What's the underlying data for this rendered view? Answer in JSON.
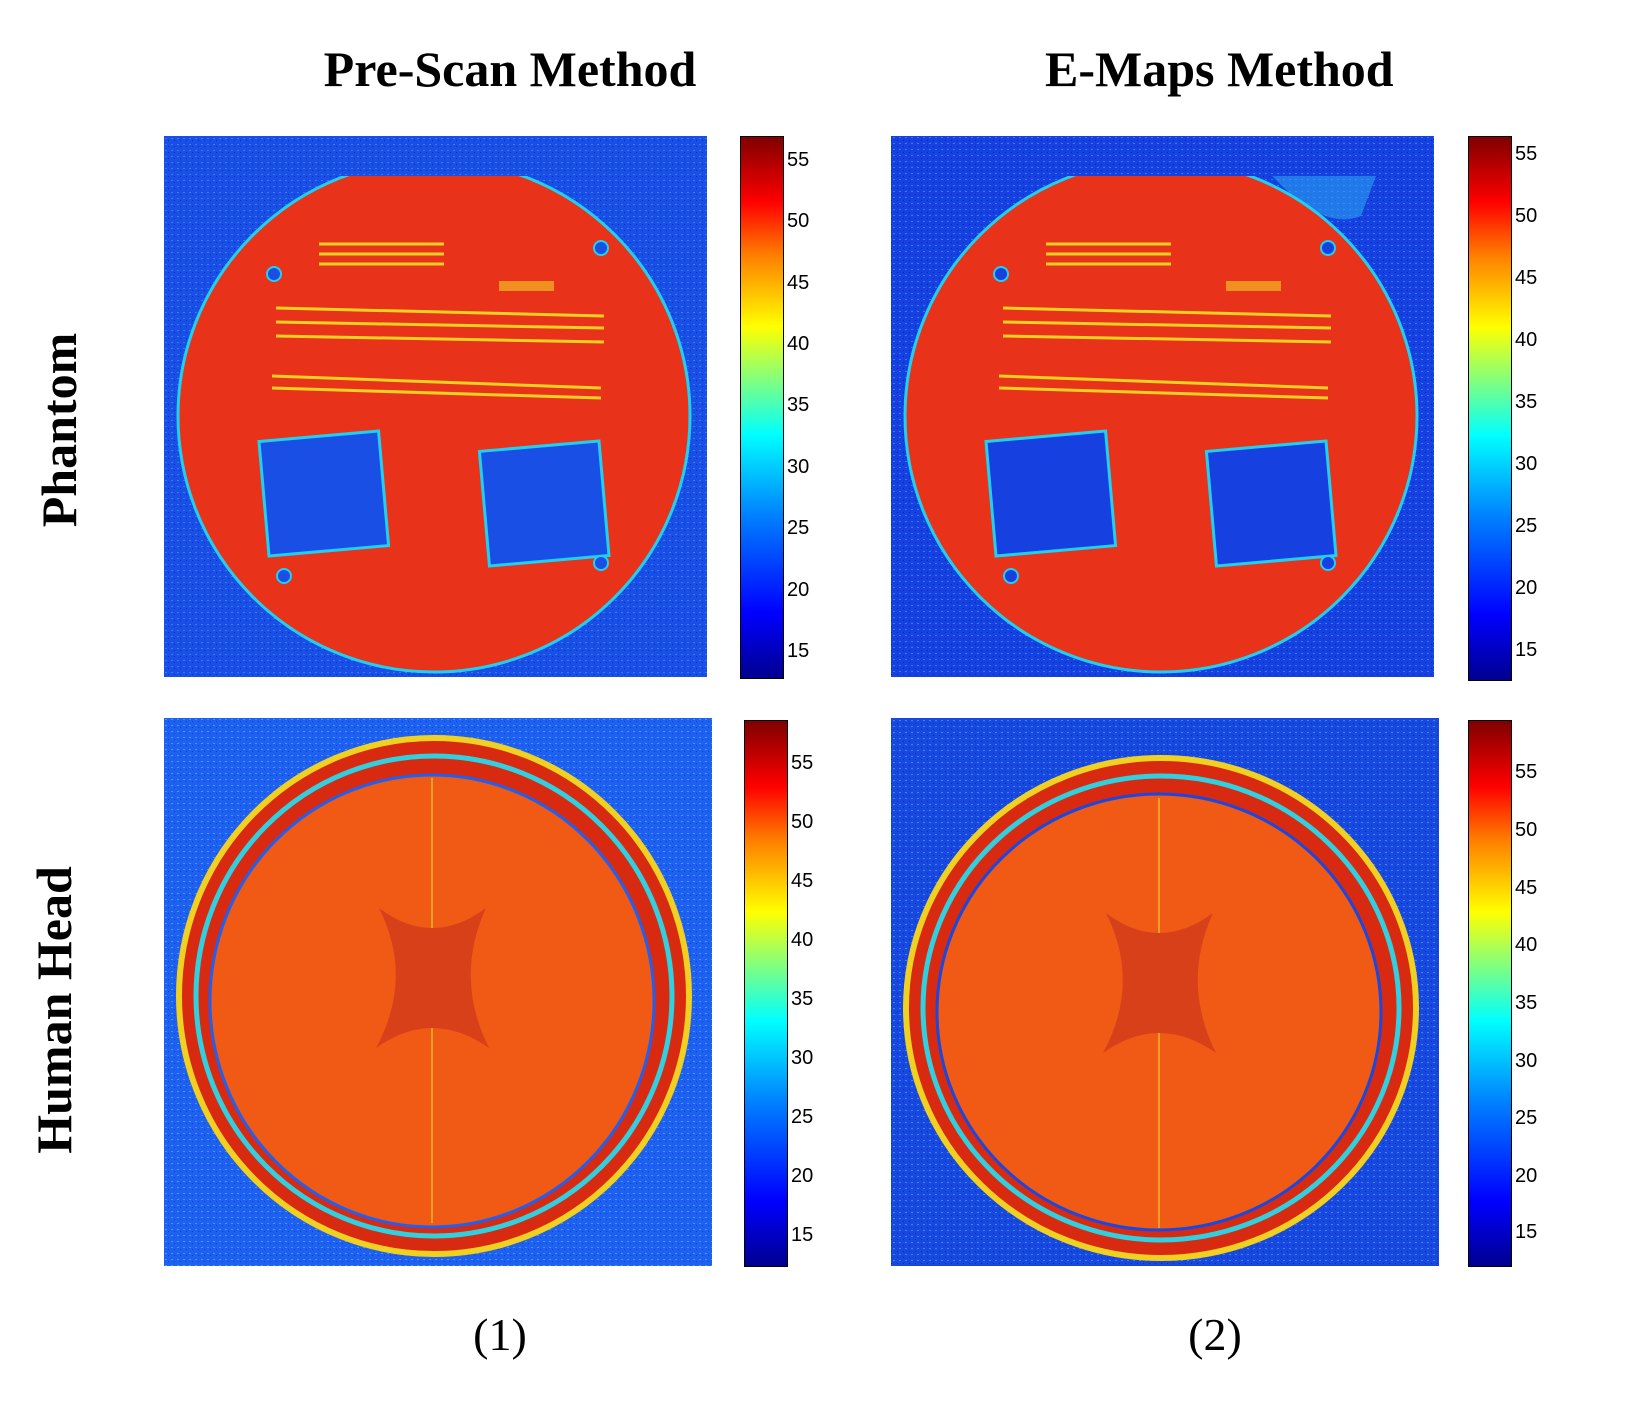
{
  "column_titles": [
    "Pre-Scan Method",
    "E-Maps Method"
  ],
  "row_labels": [
    "Phantom",
    "Human Head"
  ],
  "captions": [
    "(1)",
    "(2)"
  ],
  "colorbars": {
    "phantom_pre": [
      "55",
      "50",
      "45",
      "40",
      "35",
      "30",
      "25",
      "20",
      "15"
    ],
    "phantom_emaps": [
      "55",
      "50",
      "45",
      "40",
      "35",
      "30",
      "25",
      "20",
      "15"
    ],
    "head_pre": [
      "55",
      "50",
      "45",
      "40",
      "35",
      "30",
      "25",
      "20",
      "15"
    ],
    "head_emaps": [
      "55",
      "50",
      "45",
      "40",
      "35",
      "30",
      "25",
      "20",
      "15"
    ]
  },
  "colors": {
    "background_blue": "#1a4fe6",
    "tissue_red": "#e8331a",
    "brain_orange": "#f05a14",
    "edge_cyan": "#20d0f0",
    "stripe_yellow": "#f0d020"
  }
}
